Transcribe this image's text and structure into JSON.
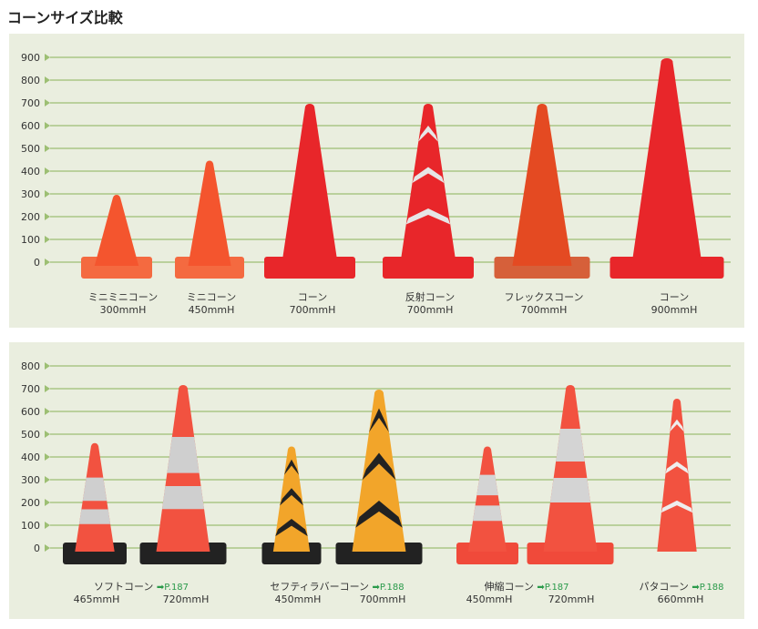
{
  "title": "コーンサイズ比較",
  "colors": {
    "grid": "#9dbf73",
    "panel": "#eaeedf",
    "cone_red": "#e8262a",
    "cone_orange": "#f25a2a",
    "reflective": "#e6e6e6",
    "black": "#222222",
    "yellow": "#f2a52a"
  },
  "panels": [
    {
      "y_ticks": [
        0,
        100,
        200,
        300,
        400,
        500,
        600,
        700,
        800,
        900
      ],
      "cones": [
        {
          "name": "ミニミニコーン",
          "height": "300mmH",
          "height_mm": 300,
          "style": "plain-orange"
        },
        {
          "name": "ミニコーン",
          "height": "450mmH",
          "height_mm": 450,
          "style": "plain-orange"
        },
        {
          "name": "コーン",
          "height": "700mmH",
          "height_mm": 700,
          "style": "plain-red"
        },
        {
          "name": "反射コーン",
          "height": "700mmH",
          "height_mm": 700,
          "style": "reflective-chevrons"
        },
        {
          "name": "フレックスコーン",
          "height": "700mmH",
          "height_mm": 700,
          "style": "flex"
        },
        {
          "name": "コーン",
          "height": "900mmH",
          "height_mm": 900,
          "style": "plain-red"
        }
      ]
    },
    {
      "y_ticks": [
        0,
        100,
        200,
        300,
        400,
        500,
        600,
        700,
        800
      ],
      "groups": [
        {
          "name": "ソフトコーン",
          "ref": "➡P.187",
          "cones": [
            {
              "height": "465mmH",
              "height_mm": 465,
              "style": "soft"
            },
            {
              "height": "720mmH",
              "height_mm": 720,
              "style": "soft"
            }
          ]
        },
        {
          "name": "セフティラバーコーン",
          "ref": "➡P.188",
          "cones": [
            {
              "height": "450mmH",
              "height_mm": 450,
              "style": "safety"
            },
            {
              "height": "700mmH",
              "height_mm": 700,
              "style": "safety"
            }
          ]
        },
        {
          "name": "伸縮コーン",
          "ref": "➡P.187",
          "cones": [
            {
              "height": "450mmH",
              "height_mm": 450,
              "style": "telescopic"
            },
            {
              "height": "720mmH",
              "height_mm": 720,
              "style": "telescopic"
            }
          ]
        },
        {
          "name": "パタコーン",
          "ref": "➡P.188",
          "cones": [
            {
              "height": "660mmH",
              "height_mm": 660,
              "style": "pata"
            }
          ]
        }
      ]
    }
  ]
}
